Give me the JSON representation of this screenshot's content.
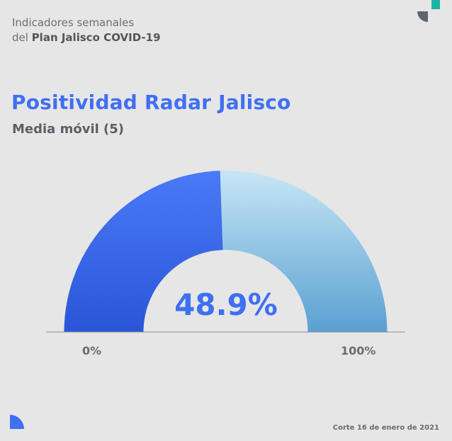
{
  "header": {
    "line1": "Indicadores semanales",
    "line2_prefix": "del ",
    "line2_bold": "Plan Jalisco COVID-19"
  },
  "colors": {
    "accent": "#3f6ff2",
    "teal": "#1bb5a6",
    "dark": "#5d6670"
  },
  "chart_data": {
    "type": "gauge",
    "title": "Positividad Radar Jalisco",
    "subtitle": "Media móvil (5)",
    "value": 48.9,
    "value_label": "48.9%",
    "min": 0,
    "max": 100,
    "min_label": "0%",
    "max_label": "100%"
  },
  "footer": {
    "date": "Corte 16 de enero de 2021"
  }
}
